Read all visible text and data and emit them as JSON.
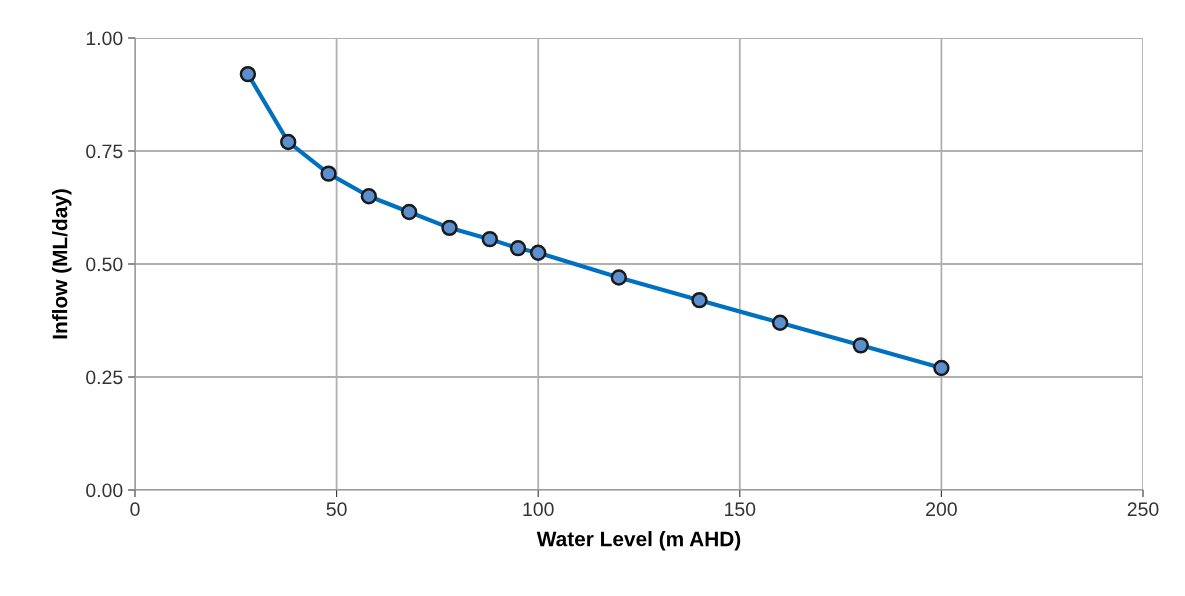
{
  "chart_data": {
    "type": "line",
    "xlabel": "Water Level (m AHD)",
    "ylabel": "Inflow (ML/day)",
    "x": [
      28,
      38,
      48,
      58,
      68,
      78,
      88,
      95,
      100,
      120,
      140,
      160,
      180,
      200
    ],
    "series": [
      {
        "color": "#0070c0",
        "values": [
          0.92,
          0.77,
          0.7,
          0.65,
          0.615,
          0.58,
          0.555,
          0.535,
          0.525,
          0.47,
          0.42,
          0.37,
          0.32,
          0.27
        ]
      }
    ],
    "xlim": [
      0,
      250
    ],
    "xticks": [
      0,
      50,
      100,
      150,
      200,
      250
    ],
    "ylim": [
      0,
      1
    ],
    "yticks": [
      {
        "value": 0,
        "label": "0.00"
      },
      {
        "value": 0.25,
        "label": "0.25"
      },
      {
        "value": 0.5,
        "label": "0.50"
      },
      {
        "value": 0.75,
        "label": "0.75"
      },
      {
        "value": 1,
        "label": "1.00"
      }
    ],
    "grid": true,
    "marker": "circle",
    "line_style": "solid"
  }
}
